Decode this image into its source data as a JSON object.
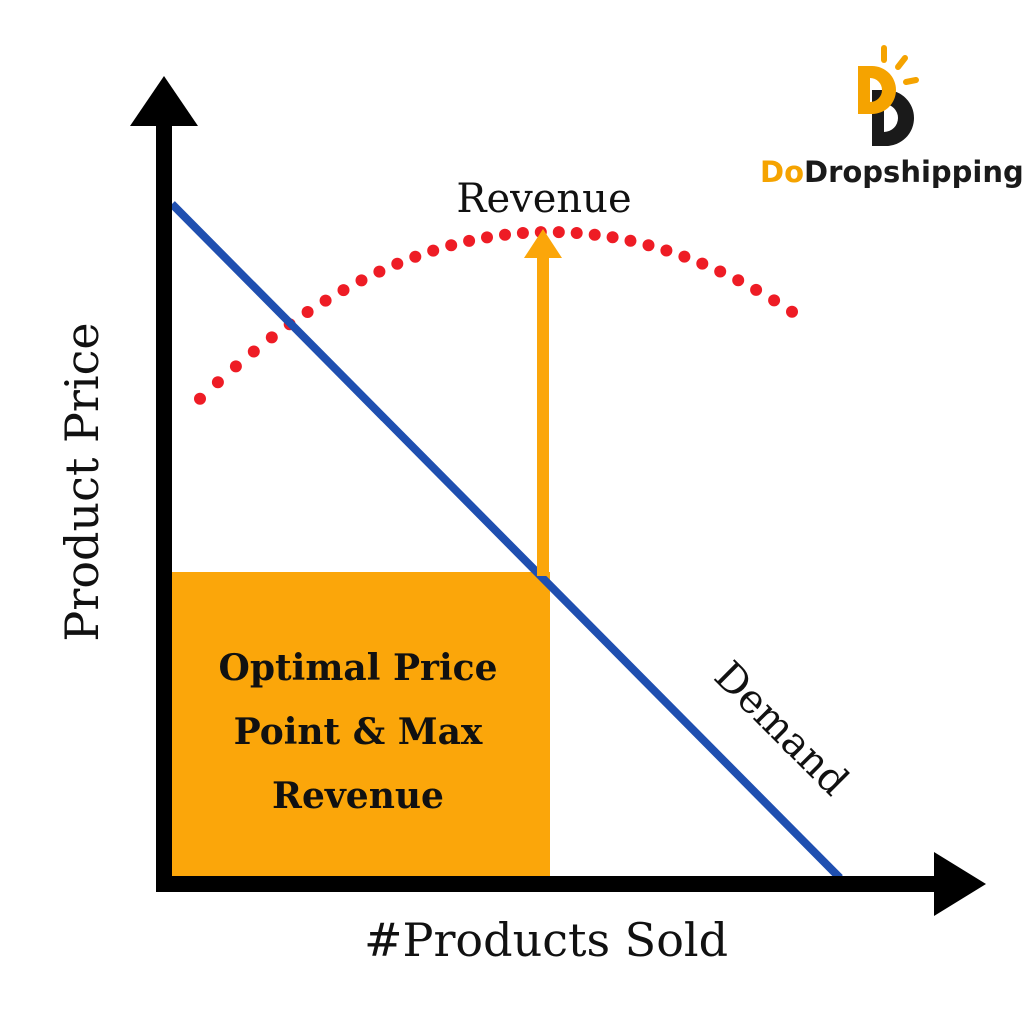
{
  "diagram": {
    "y_axis_label": "Product Price",
    "x_axis_label": "#Products Sold",
    "curve_label": "Revenue",
    "line_label": "Demand",
    "box_lines": [
      "Optimal Price",
      "Point & Max",
      "Revenue"
    ]
  },
  "logo": {
    "part1": "Do",
    "part2": "Dropshipping"
  },
  "colors": {
    "demand_line": "#1f4fb0",
    "revenue_dots": "#ee1c25",
    "optimal_box": "#fba60a",
    "arrow": "#fba60a",
    "axes": "#000000",
    "logo_accent": "#f5a300",
    "logo_dark": "#1a1a1a"
  }
}
